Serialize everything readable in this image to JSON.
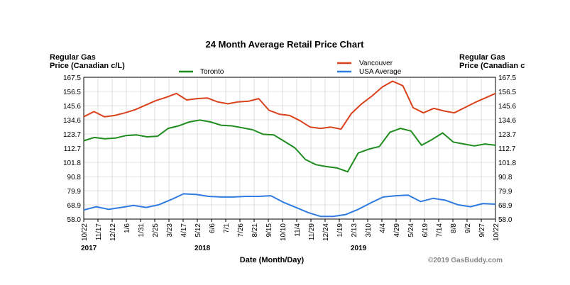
{
  "chart_data": {
    "type": "line",
    "title": "24 Month Average Retail Price Chart",
    "ylabel_left": [
      "Regular Gas",
      "Price (Canadian c/L)"
    ],
    "ylabel_right": [
      "Regular Gas",
      "Price (Canadian c"
    ],
    "xlabel": "Date (Month/Day)",
    "credit": "©2019 GasBuddy.com",
    "ylim": [
      58.0,
      167.5
    ],
    "yticks": [
      "167.5",
      "156.5",
      "145.6",
      "134.6",
      "123.7",
      "112.7",
      "101.8",
      "90.8",
      "79.9",
      "68.9",
      "58.0"
    ],
    "grid": true,
    "legend_placement": "top",
    "xticks": [
      "10/22",
      "11/17",
      "12/12",
      "1/6",
      "1/31",
      "2/25",
      "3/23",
      "4/17",
      "5/12",
      "6/6",
      "7/1",
      "7/26",
      "8/21",
      "9/15",
      "10/10",
      "11/4",
      "11/29",
      "12/24",
      "1/19",
      "2/13",
      "3/10",
      "4/4",
      "4/29",
      "5/24",
      "6/19",
      "7/14",
      "8/8",
      "9/2",
      "9/27",
      "10/22"
    ],
    "years": [
      {
        "label": "2017",
        "tick_index": 0
      },
      {
        "label": "2018",
        "tick_index": 8
      },
      {
        "label": "2019",
        "tick_index": 19
      }
    ],
    "series": [
      {
        "name": "Toronto",
        "color": "#1e8c1e",
        "values": [
          118.5,
          121,
          120,
          120.5,
          122.5,
          123,
          121.5,
          122,
          128,
          130,
          133,
          134.5,
          133,
          130.5,
          130,
          128.5,
          127,
          123.5,
          123,
          118,
          113,
          104,
          100,
          98.5,
          97.5,
          94.5,
          109,
          112,
          114,
          125,
          128,
          126,
          115,
          119.5,
          124.5,
          117.5,
          116,
          114.5,
          116,
          115
        ]
      },
      {
        "name": "Vancouver",
        "color": "#d9421c",
        "values": [
          137,
          141,
          137,
          138,
          140,
          142.5,
          146,
          149.5,
          152,
          155,
          150,
          151,
          151.5,
          148.5,
          147,
          148.5,
          149,
          151,
          142,
          139,
          138,
          134,
          129,
          128,
          129,
          127.5,
          139.5,
          147,
          153,
          160,
          164.5,
          161,
          144,
          140,
          143.5,
          141.5,
          140,
          144,
          148,
          151.5,
          155
        ]
      },
      {
        "name": "USA Average",
        "color": "#2f7be0",
        "values": [
          65,
          67.5,
          65.5,
          67,
          68.5,
          67,
          69,
          73,
          77.5,
          77,
          75.5,
          75,
          75,
          75.5,
          75.5,
          76,
          71,
          67,
          63,
          60,
          60,
          61.5,
          65.5,
          70.5,
          75,
          76,
          76.5,
          71.5,
          74,
          72.5,
          69,
          67.5,
          70,
          69.5
        ]
      }
    ]
  }
}
